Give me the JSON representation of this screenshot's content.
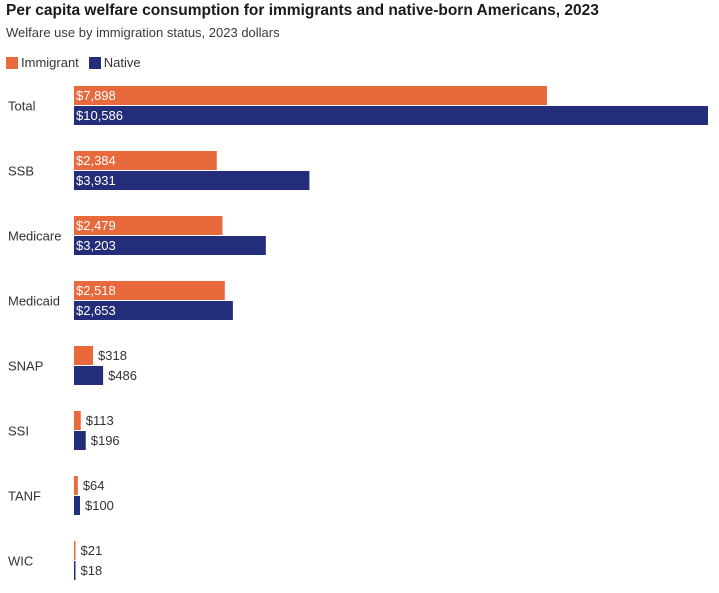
{
  "chart_data": {
    "type": "bar",
    "orientation": "horizontal",
    "title": "Per capita welfare consumption for immigrants and native-born Americans, 2023",
    "subtitle": "Welfare use by immigration status, 2023 dollars",
    "categories": [
      "Total",
      "SSB",
      "Medicare",
      "Medicaid",
      "SNAP",
      "SSI",
      "TANF",
      "WIC"
    ],
    "series": [
      {
        "name": "Immigrant",
        "color": "#e8693c",
        "values": [
          7898,
          2384,
          2479,
          2518,
          318,
          113,
          64,
          21
        ],
        "labels": [
          "$7,898",
          "$2,384",
          "$2,479",
          "$2,518",
          "$318",
          "$113",
          "$64",
          "$21"
        ]
      },
      {
        "name": "Native",
        "color": "#232d7a",
        "values": [
          10586,
          3931,
          3203,
          2653,
          486,
          196,
          100,
          18
        ],
        "labels": [
          "$10,586",
          "$3,931",
          "$3,203",
          "$2,653",
          "$486",
          "$196",
          "$100",
          "$18"
        ]
      }
    ],
    "xlim": [
      0,
      10586
    ],
    "grid": false,
    "legend": "top-left"
  }
}
